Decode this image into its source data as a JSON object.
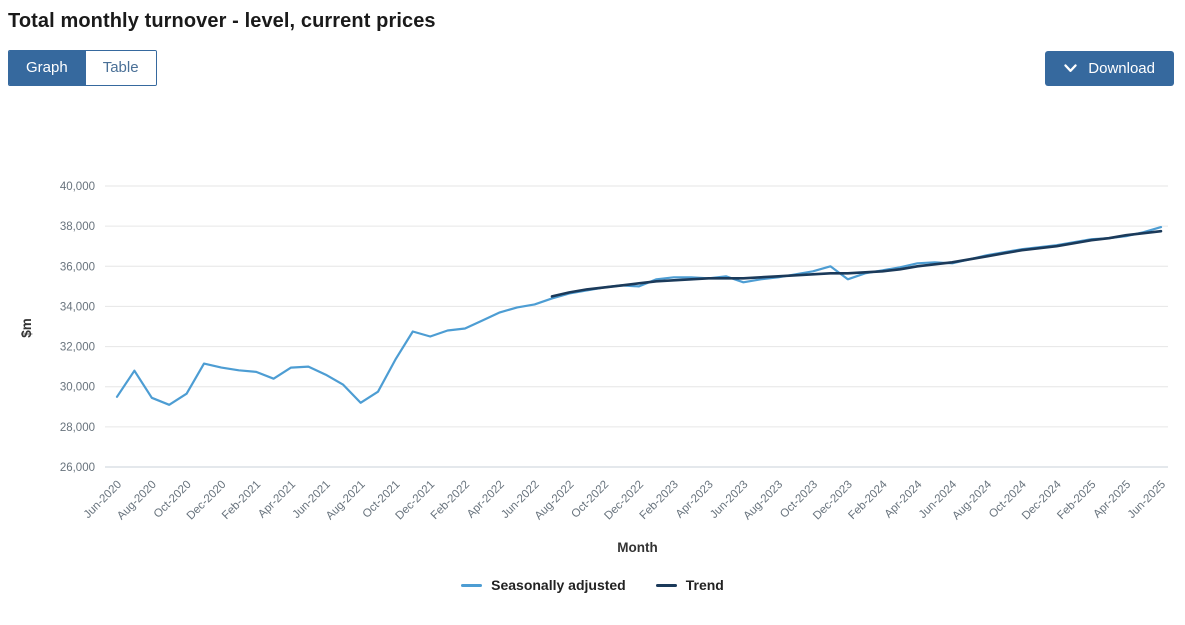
{
  "page": {
    "title": "Total monthly turnover - level, current prices"
  },
  "toolbar": {
    "view_tabs": [
      {
        "label": "Graph",
        "selected": true
      },
      {
        "label": "Table",
        "selected": false
      }
    ],
    "download_label": "Download"
  },
  "colors": {
    "accent_blue": "#36699e",
    "seasonally_adjusted_line": "#4d9dd3",
    "trend_line": "#1b3a5a",
    "gridline": "#e6e6e6",
    "axis_line": "#c9d0d8",
    "axis_text": "#68737d",
    "title_text": "#1a1a1a"
  },
  "chart_data": {
    "type": "line",
    "title": "Total monthly turnover - level, current prices",
    "xlabel": "Month",
    "ylabel": "$m",
    "ylim": [
      26000,
      40000
    ],
    "yticks": [
      26000,
      28000,
      30000,
      32000,
      34000,
      36000,
      38000,
      40000
    ],
    "grid": "horizontal",
    "legend_position": "bottom",
    "x_tick_every": 2,
    "x": [
      "Jun-2020",
      "Jul-2020",
      "Aug-2020",
      "Sep-2020",
      "Oct-2020",
      "Nov-2020",
      "Dec-2020",
      "Jan-2021",
      "Feb-2021",
      "Mar-2021",
      "Apr-2021",
      "May-2021",
      "Jun-2021",
      "Jul-2021",
      "Aug-2021",
      "Sep-2021",
      "Oct-2021",
      "Nov-2021",
      "Dec-2021",
      "Jan-2022",
      "Feb-2022",
      "Mar-2022",
      "Apr-2022",
      "May-2022",
      "Jun-2022",
      "Jul-2022",
      "Aug-2022",
      "Sep-2022",
      "Oct-2022",
      "Nov-2022",
      "Dec-2022",
      "Jan-2023",
      "Feb-2023",
      "Mar-2023",
      "Apr-2023",
      "May-2023",
      "Jun-2023",
      "Jul-2023",
      "Aug-2023",
      "Sep-2023",
      "Oct-2023",
      "Nov-2023",
      "Dec-2023",
      "Jan-2024",
      "Feb-2024",
      "Mar-2024",
      "Apr-2024",
      "May-2024",
      "Jun-2024",
      "Jul-2024",
      "Aug-2024",
      "Sep-2024",
      "Oct-2024",
      "Nov-2024",
      "Dec-2024",
      "Jan-2025",
      "Feb-2025",
      "Mar-2025",
      "Apr-2025",
      "May-2025",
      "Jun-2025"
    ],
    "series": [
      {
        "name": "Seasonally adjusted",
        "color": "#4d9dd3",
        "values": [
          29500,
          30800,
          29450,
          29100,
          29650,
          31150,
          30950,
          30820,
          30740,
          30400,
          30950,
          31000,
          30600,
          30100,
          29200,
          29750,
          31350,
          32750,
          32500,
          32800,
          32900,
          33300,
          33700,
          33950,
          34100,
          34400,
          34650,
          34800,
          34950,
          35050,
          35000,
          35350,
          35450,
          35450,
          35400,
          35500,
          35200,
          35350,
          35450,
          35600,
          35750,
          36000,
          35350,
          35650,
          35800,
          35950,
          36150,
          36200,
          36150,
          36350,
          36550,
          36700,
          36850,
          36950,
          37050,
          37200,
          37350,
          37400,
          37500,
          37700,
          37950
        ]
      },
      {
        "name": "Trend",
        "color": "#1b3a5a",
        "values": [
          null,
          null,
          null,
          null,
          null,
          null,
          null,
          null,
          null,
          null,
          null,
          null,
          null,
          null,
          null,
          null,
          null,
          null,
          null,
          null,
          null,
          null,
          null,
          null,
          null,
          34500,
          34700,
          34850,
          34950,
          35050,
          35150,
          35250,
          35300,
          35350,
          35400,
          35400,
          35400,
          35450,
          35500,
          35550,
          35600,
          35650,
          35650,
          35700,
          35750,
          35850,
          36000,
          36100,
          36200,
          36350,
          36500,
          36650,
          36800,
          36900,
          37000,
          37150,
          37300,
          37400,
          37550,
          37650,
          37750
        ]
      }
    ]
  }
}
